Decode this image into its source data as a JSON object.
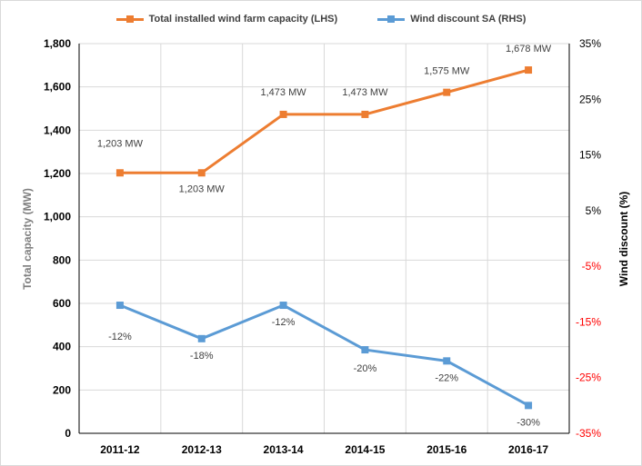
{
  "chart_data": {
    "type": "line",
    "categories": [
      "2011-12",
      "2012-13",
      "2013-14",
      "2014-15",
      "2015-16",
      "2016-17"
    ],
    "series": [
      {
        "name": "Total installed wind farm capacity (LHS)",
        "axis": "left",
        "color": "#ED7D31",
        "values": [
          1203,
          1203,
          1473,
          1473,
          1575,
          1678
        ],
        "data_labels": [
          "1,203 MW",
          "1,203 MW",
          "1,473 MW",
          "1,473 MW",
          "1,575 MW",
          "1,678 MW"
        ]
      },
      {
        "name": "Wind discount SA (RHS)",
        "axis": "right",
        "color": "#5B9BD5",
        "values": [
          -12,
          -18,
          -12,
          -20,
          -22,
          -30
        ],
        "data_labels": [
          "-12%",
          "-18%",
          "-12%",
          "-20%",
          "-22%",
          "-30%"
        ]
      }
    ],
    "ylabel": "Total capacity (MW)",
    "y2label": "Wind discount (%)",
    "ylim": [
      0,
      1800
    ],
    "y2lim": [
      -35,
      35
    ],
    "yticks": [
      0,
      200,
      400,
      600,
      800,
      1000,
      1200,
      1400,
      1600,
      1800
    ],
    "ytick_labels": [
      "0",
      "200",
      "400",
      "600",
      "800",
      "1,000",
      "1,200",
      "1,400",
      "1,600",
      "1,800"
    ],
    "y2ticks": [
      -35,
      -25,
      -15,
      -5,
      5,
      15,
      25,
      35
    ],
    "y2tick_labels": [
      "-35%",
      "-25%",
      "-15%",
      "-5%",
      "5%",
      "15%",
      "25%",
      "35%"
    ],
    "y2_negative_color": "#FF0000",
    "grid": true,
    "legend_position": "top"
  }
}
